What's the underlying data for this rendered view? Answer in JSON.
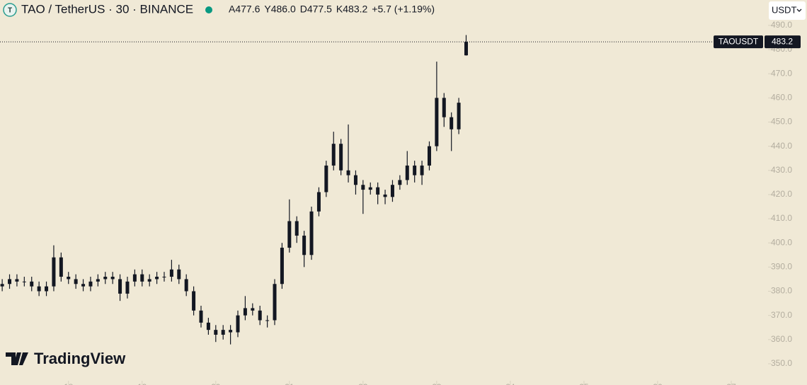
{
  "chart_data": {
    "type": "candlestick",
    "symbol_title": "TAO / TetherUS · 30 · BINANCE",
    "quote": [
      "A477.6",
      "Y486.0",
      "D477.5",
      "K483.2",
      "+5.7 (+1.19%)"
    ],
    "currency": "USDT",
    "watermark": "TradingView",
    "price_line_label": "TAOUSDT",
    "color": "#131722",
    "x": [
      17.1,
      17.2,
      17.3,
      17.4,
      17.5,
      17.6,
      17.7,
      17.8,
      17.9,
      18.0,
      18.1,
      18.2,
      18.3,
      18.4,
      18.5,
      18.6,
      18.7,
      18.8,
      18.9,
      19.0,
      19.1,
      19.2,
      19.3,
      19.4,
      19.5,
      19.6,
      19.7,
      19.8,
      19.9,
      20.0,
      20.1,
      20.2,
      20.3,
      20.4,
      20.5,
      20.6,
      20.7,
      20.8,
      20.9,
      21.0,
      21.1,
      21.2,
      21.3,
      21.4,
      21.5,
      21.6,
      21.7,
      21.8,
      21.9,
      22.0,
      22.1,
      22.2,
      22.3,
      22.4,
      22.5,
      22.6,
      22.7,
      22.8,
      22.9,
      23.0,
      23.1,
      23.2,
      23.3,
      23.4
    ],
    "open": [
      382,
      383,
      385,
      384,
      384,
      382,
      380,
      382,
      394,
      386,
      385,
      383,
      382,
      384,
      385,
      386,
      385,
      379,
      384,
      387,
      384,
      385,
      386,
      386,
      389,
      385,
      380,
      372,
      367,
      364,
      362,
      364,
      363,
      370,
      373,
      372,
      368,
      368,
      383,
      398,
      409,
      403,
      395,
      413,
      421,
      432,
      441,
      430,
      428,
      424,
      422,
      423,
      420,
      419,
      424,
      426,
      432,
      428,
      432,
      440,
      460,
      452,
      447,
      477.6
    ],
    "high": [
      385,
      387,
      387,
      386,
      386,
      384,
      384,
      399,
      396,
      388,
      387,
      385,
      386,
      387,
      388,
      388,
      387,
      386,
      389,
      389,
      387,
      388,
      388,
      393,
      391,
      387,
      382,
      374,
      369,
      366,
      366,
      366,
      372,
      378,
      375,
      374,
      370,
      385,
      400,
      418,
      411,
      405,
      415,
      423,
      434,
      446,
      443,
      449,
      430,
      426,
      425,
      425,
      422,
      426,
      428,
      438,
      434,
      434,
      442,
      475,
      462,
      454,
      460,
      486
    ],
    "low": [
      380,
      381,
      382,
      382,
      380,
      378,
      378,
      380,
      384,
      383,
      381,
      380,
      380,
      382,
      383,
      383,
      376,
      377,
      382,
      382,
      382,
      383,
      384,
      384,
      383,
      378,
      370,
      365,
      362,
      359,
      360,
      358,
      361,
      368,
      370,
      366,
      365,
      366,
      381,
      396,
      400,
      390,
      393,
      411,
      419,
      430,
      428,
      425,
      420,
      412,
      420,
      416,
      416,
      417,
      422,
      424,
      425,
      424,
      430,
      438,
      448,
      438,
      445,
      477.5
    ],
    "close": [
      383,
      385,
      384,
      384,
      382,
      380,
      382,
      394,
      386,
      385,
      383,
      382,
      384,
      385,
      386,
      385,
      379,
      384,
      387,
      384,
      385,
      386,
      386,
      389,
      385,
      380,
      372,
      367,
      364,
      362,
      364,
      363,
      370,
      373,
      372,
      368,
      368,
      383,
      398,
      409,
      403,
      395,
      413,
      421,
      432,
      441,
      430,
      428,
      424,
      422,
      423,
      420,
      419,
      424,
      426,
      432,
      428,
      432,
      440,
      460,
      452,
      447,
      458,
      483.2
    ],
    "xlim": [
      17.07,
      27.5
    ],
    "xticks": [
      18,
      19,
      20,
      21,
      22,
      23,
      24,
      25,
      26,
      27
    ],
    "ylim": [
      341.2,
      500.5
    ],
    "yticks": [
      {
        "value": 350,
        "label": "350.0"
      },
      {
        "value": 360,
        "label": "360.0"
      },
      {
        "value": 370,
        "label": "370.0"
      },
      {
        "value": 380,
        "label": "380.0"
      },
      {
        "value": 390,
        "label": "390.0"
      },
      {
        "value": 400,
        "label": "400.0"
      },
      {
        "value": 410,
        "label": "410.0"
      },
      {
        "value": 420,
        "label": "420.0"
      },
      {
        "value": 430,
        "label": "430.0"
      },
      {
        "value": 440,
        "label": "440.0"
      },
      {
        "value": 450,
        "label": "450.0"
      },
      {
        "value": 460,
        "label": "460.0"
      },
      {
        "value": 470,
        "label": "470.0"
      },
      {
        "value": 480,
        "label": "480.0"
      },
      {
        "value": 490,
        "label": "490.0"
      }
    ]
  }
}
